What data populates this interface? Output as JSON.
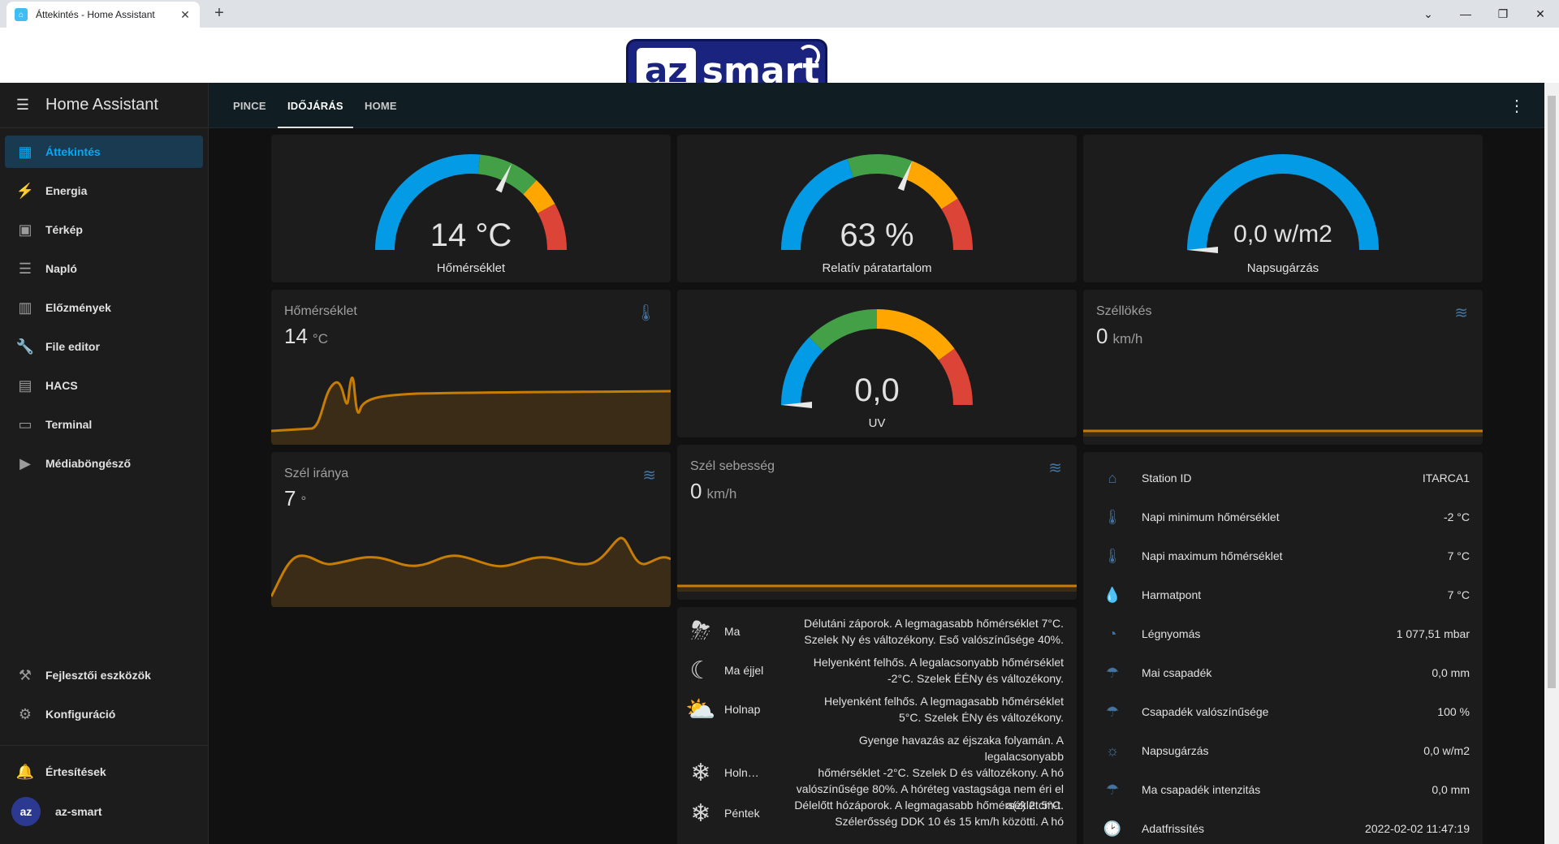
{
  "browser": {
    "tab_title": "Áttekintés - Home Assistant",
    "close_glyph": "✕",
    "new_tab_glyph": "+",
    "controls": {
      "dropdown": "⌄",
      "minimize": "—",
      "restore": "❐",
      "close": "✕"
    }
  },
  "banner": {
    "logo_az": "az",
    "logo_smart": "smart"
  },
  "sidebar": {
    "app_title": "Home Assistant",
    "items": [
      {
        "label": "Áttekintés",
        "icon": "dashboard-icon",
        "glyph": "▦",
        "active": true
      },
      {
        "label": "Energia",
        "icon": "lightning-icon",
        "glyph": "⚡"
      },
      {
        "label": "Térkép",
        "icon": "map-account-icon",
        "glyph": "▣"
      },
      {
        "label": "Napló",
        "icon": "list-icon",
        "glyph": "☰"
      },
      {
        "label": "Előzmények",
        "icon": "chart-bar-icon",
        "glyph": "▥"
      },
      {
        "label": "File editor",
        "icon": "wrench-icon",
        "glyph": "🔧"
      },
      {
        "label": "HACS",
        "icon": "hacs-icon",
        "glyph": "▤"
      },
      {
        "label": "Terminal",
        "icon": "console-icon",
        "glyph": "▭"
      },
      {
        "label": "Médiaböngésző",
        "icon": "play-box-icon",
        "glyph": "▶"
      }
    ],
    "bottom_items": [
      {
        "label": "Fejlesztői eszközök",
        "icon": "hammer-icon",
        "glyph": "⚒"
      },
      {
        "label": "Konfiguráció",
        "icon": "gear-icon",
        "glyph": "⚙"
      }
    ],
    "notifications": {
      "label": "Értesítések",
      "icon": "bell-icon",
      "glyph": "🔔"
    },
    "user": {
      "label": "az-smart",
      "avatar": "az"
    }
  },
  "topbar": {
    "tabs": [
      {
        "label": "PINCE",
        "active": false
      },
      {
        "label": "IDŐJÁRÁS",
        "active": true
      },
      {
        "label": "HOME",
        "active": false
      }
    ],
    "menu_glyph": "⋮"
  },
  "gauges": [
    {
      "name": "Hőmérséklet",
      "value": "14 °C",
      "level": 0.64,
      "segments": [
        [
          "#039be5",
          0.53
        ],
        [
          "#43a047",
          0.74
        ],
        [
          "#ffa600",
          0.84
        ],
        [
          "#db4437",
          1.0
        ]
      ]
    },
    {
      "name": "Relatív páratartalom",
      "value": "63 %",
      "level": 0.62,
      "segments": [
        [
          "#039be5",
          0.4
        ],
        [
          "#43a047",
          0.62
        ],
        [
          "#ffa600",
          0.82
        ],
        [
          "#db4437",
          1.0
        ]
      ]
    },
    {
      "name": "Napsugárzás",
      "value": "0,0 w/m2",
      "level": 0.0,
      "segments": [
        [
          "#039be5",
          1.0
        ]
      ]
    },
    {
      "name": "UV",
      "value": "0,0",
      "level": 0.0,
      "segments": [
        [
          "#039be5",
          0.25
        ],
        [
          "#43a047",
          0.5
        ],
        [
          "#ffa600",
          0.8
        ],
        [
          "#db4437",
          1.0
        ]
      ]
    }
  ],
  "sensors": {
    "temperature": {
      "name": "Hőmérséklet",
      "value": "14",
      "unit": "°C",
      "icon": "thermometer-icon",
      "glyph": "🌡"
    },
    "gust": {
      "name": "Széllökés",
      "value": "0",
      "unit": "km/h",
      "icon": "weather-windy-icon",
      "glyph": "≋"
    },
    "wind_dir": {
      "name": "Szél iránya",
      "value": "7",
      "unit": "°",
      "icon": "weather-windy-icon",
      "glyph": "≋"
    },
    "wind_speed": {
      "name": "Szél sebesség",
      "value": "0",
      "unit": "km/h",
      "icon": "weather-windy-icon",
      "glyph": "≋"
    }
  },
  "forecast": [
    {
      "day": "Ma",
      "glyph": "⛈",
      "icon": "weather-rainy-night-icon",
      "lines": [
        "Délutáni záporok. A legmagasabb hőmérséklet 7°C.",
        "Szelek Ny és változékony. Eső valószínűsége 40%."
      ]
    },
    {
      "day": "Ma éjjel",
      "glyph": "☾",
      "icon": "weather-night-cloudy-icon",
      "lines": [
        "Helyenként felhős. A legalacsonyabb hőmérséklet",
        "-2°C. Szelek ÉÉNy és változékony."
      ]
    },
    {
      "day": "Holnap",
      "glyph": "⛅",
      "icon": "weather-partly-cloudy-icon",
      "lines": [
        "Helyenként felhős. A legmagasabb hőmérséklet",
        "5°C. Szelek ÉNy és változékony."
      ]
    },
    {
      "day": "Holn…",
      "glyph": "❄",
      "icon": "weather-snowy-icon",
      "lines": [
        "Gyenge havazás az éjszaka folyamán. A legalacsonyabb",
        "hőmérséklet -2°C. Szelek D és változékony. A hó",
        "valószínűsége 80%. A hóréteg vastagsága nem éri el",
        "a(z) 2 cm-t."
      ]
    },
    {
      "day": "Péntek",
      "glyph": "❄",
      "icon": "weather-snowy-icon",
      "lines": [
        "Délelőtt hózáporok. A legmagasabb hőmérséklet 5°C.",
        "Szélerősség DDK 10 és 15 km/h közötti. A hó"
      ]
    }
  ],
  "attributes": [
    {
      "name": "Station ID",
      "value": "ITARCA1",
      "icon": "home-icon",
      "glyph": "⌂"
    },
    {
      "name": "Napi minimum hőmérséklet",
      "value": "-2 °C",
      "icon": "thermometer-icon",
      "glyph": "🌡"
    },
    {
      "name": "Napi maximum hőmérséklet",
      "value": "7 °C",
      "icon": "thermometer-icon",
      "glyph": "🌡"
    },
    {
      "name": "Harmatpont",
      "value": "7 °C",
      "icon": "water-icon",
      "glyph": "💧"
    },
    {
      "name": "Légnyomás",
      "value": "1 077,51 mbar",
      "icon": "gauge-icon",
      "glyph": "◔"
    },
    {
      "name": "Mai csapadék",
      "value": "0,0 mm",
      "icon": "umbrella-icon",
      "glyph": "☂"
    },
    {
      "name": "Csapadék valószínűsége",
      "value": "100 %",
      "icon": "umbrella-icon",
      "glyph": "☂"
    },
    {
      "name": "Napsugárzás",
      "value": "0,0 w/m2",
      "icon": "sun-icon",
      "glyph": "☼"
    },
    {
      "name": "Ma csapadék intenzitás",
      "value": "0,0 mm",
      "icon": "umbrella-icon",
      "glyph": "☂"
    },
    {
      "name": "Adatfrissítés",
      "value": "2022-02-02 11:47:19",
      "icon": "clock-icon",
      "glyph": "🕑"
    }
  ],
  "colors": {
    "accent": "#03a9f4",
    "history_line": "#c77c02",
    "icon_blue": "#44739e"
  }
}
